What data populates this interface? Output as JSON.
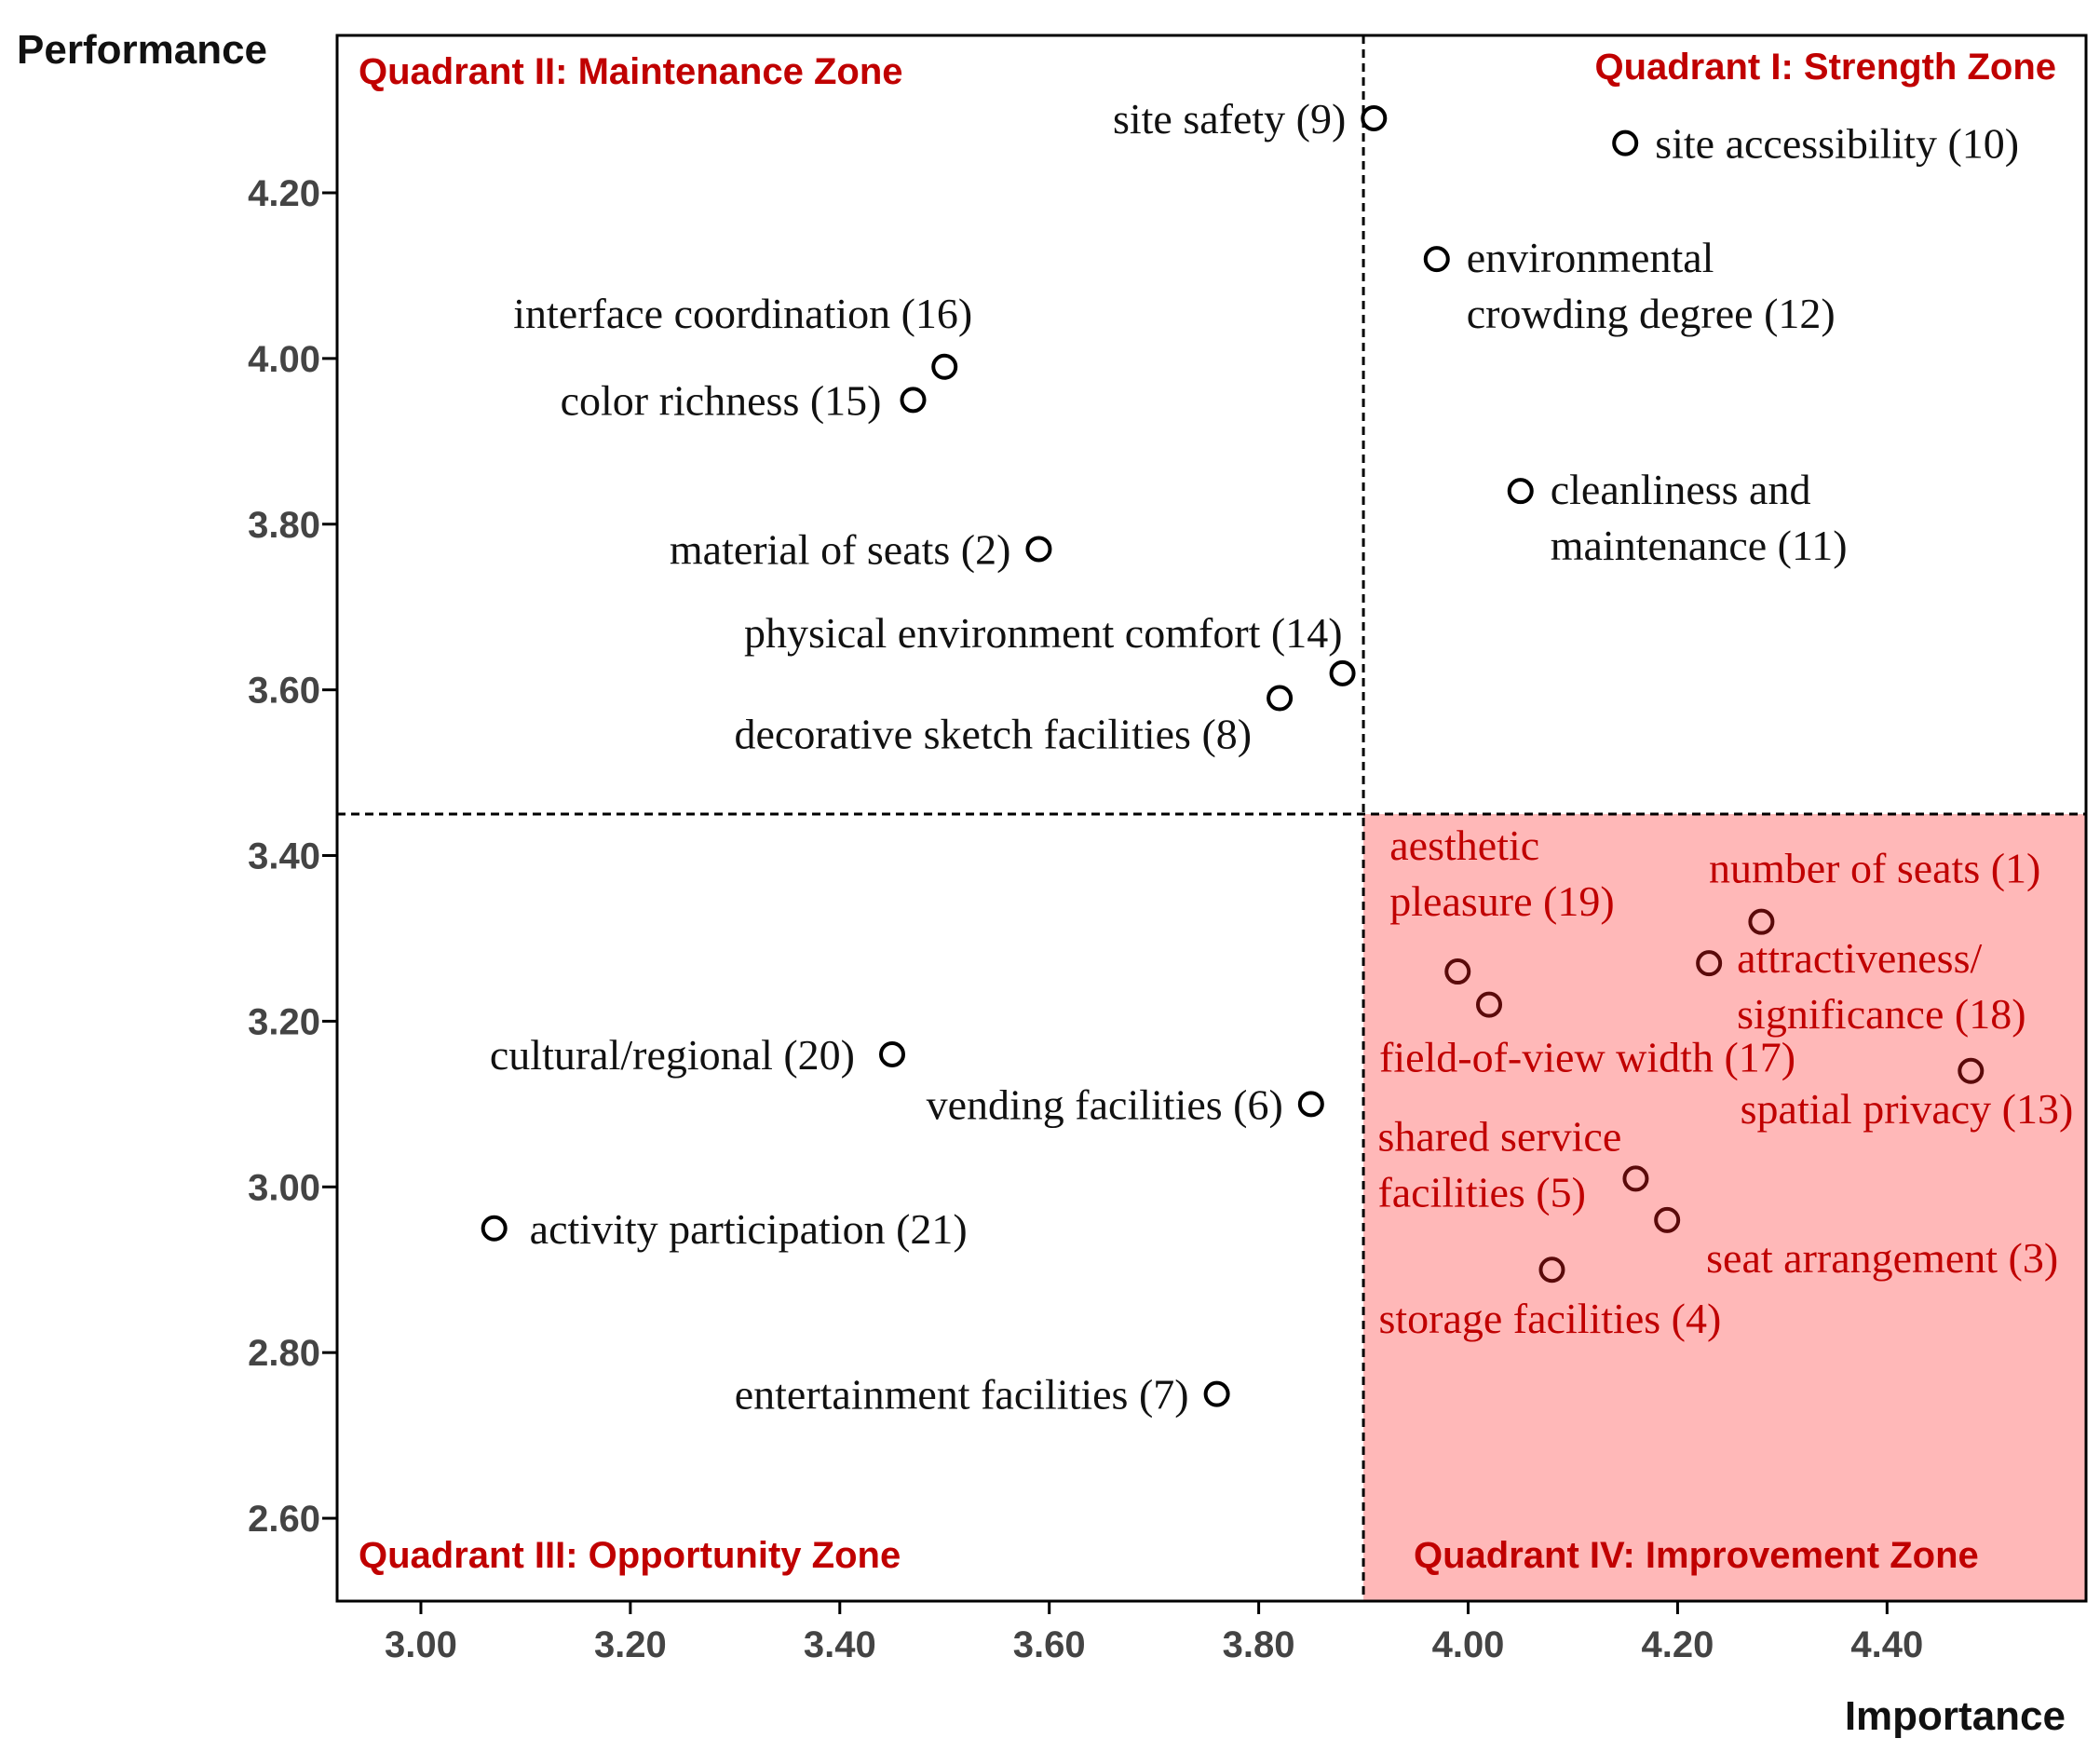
{
  "chart_data": {
    "type": "scatter",
    "title": "",
    "xlabel": "Importance",
    "ylabel": "Performance",
    "xlim": [
      2.92,
      4.59
    ],
    "ylim": [
      2.5,
      4.39
    ],
    "x_ticks": [
      "3.00",
      "3.20",
      "3.40",
      "3.60",
      "3.80",
      "4.00",
      "4.20",
      "4.40"
    ],
    "y_ticks": [
      "2.60",
      "2.80",
      "3.00",
      "3.20",
      "3.40",
      "3.60",
      "3.80",
      "4.00",
      "4.20"
    ],
    "divider": {
      "x": 3.9,
      "y": 3.45
    },
    "quadrants": [
      {
        "id": "I",
        "label": "Quadrant I: Strength Zone"
      },
      {
        "id": "II",
        "label": "Quadrant II: Maintenance Zone"
      },
      {
        "id": "III",
        "label": "Quadrant III: Opportunity Zone"
      },
      {
        "id": "IV",
        "label": "Quadrant IV: Improvement Zone"
      }
    ],
    "highlight_color": "#ffb8b8",
    "label_color": "#c00000",
    "points": [
      {
        "id": 1,
        "lines": [
          "number of seats (1)"
        ],
        "x": 4.28,
        "y": 3.32
      },
      {
        "id": 2,
        "lines": [
          "material of seats (2)"
        ],
        "x": 3.59,
        "y": 3.77
      },
      {
        "id": 3,
        "lines": [
          "seat arrangement (3)"
        ],
        "x": 4.19,
        "y": 2.96
      },
      {
        "id": 4,
        "lines": [
          "storage facilities (4)"
        ],
        "x": 4.08,
        "y": 2.9
      },
      {
        "id": 5,
        "lines": [
          "shared service",
          "facilities (5)"
        ],
        "x": 4.16,
        "y": 3.01
      },
      {
        "id": 6,
        "lines": [
          "vending facilities (6)"
        ],
        "x": 3.85,
        "y": 3.1
      },
      {
        "id": 7,
        "lines": [
          "entertainment facilities (7)"
        ],
        "x": 3.76,
        "y": 2.75
      },
      {
        "id": 8,
        "lines": [
          "decorative sketch facilities (8)"
        ],
        "x": 3.82,
        "y": 3.59
      },
      {
        "id": 9,
        "lines": [
          "site safety (9)"
        ],
        "x": 3.91,
        "y": 4.29
      },
      {
        "id": 10,
        "lines": [
          "site accessibility (10)"
        ],
        "x": 4.15,
        "y": 4.26
      },
      {
        "id": 11,
        "lines": [
          "cleanliness and",
          "maintenance (11)"
        ],
        "x": 4.05,
        "y": 3.84
      },
      {
        "id": 12,
        "lines": [
          "environmental",
          "crowding degree (12)"
        ],
        "x": 3.97,
        "y": 4.12
      },
      {
        "id": 13,
        "lines": [
          "spatial privacy (13)"
        ],
        "x": 4.48,
        "y": 3.14
      },
      {
        "id": 14,
        "lines": [
          "physical environment comfort (14)"
        ],
        "x": 3.88,
        "y": 3.62
      },
      {
        "id": 15,
        "lines": [
          "color richness (15)"
        ],
        "x": 3.47,
        "y": 3.95
      },
      {
        "id": 16,
        "lines": [
          "interface coordination (16)"
        ],
        "x": 3.5,
        "y": 3.99
      },
      {
        "id": 17,
        "lines": [
          "field-of-view width (17)"
        ],
        "x": 4.02,
        "y": 3.22
      },
      {
        "id": 18,
        "lines": [
          "attractiveness/",
          "significance (18)"
        ],
        "x": 4.23,
        "y": 3.27
      },
      {
        "id": 19,
        "lines": [
          "aesthetic",
          "pleasure (19)"
        ],
        "x": 3.99,
        "y": 3.26
      },
      {
        "id": 20,
        "lines": [
          "cultural/regional (20)"
        ],
        "x": 3.45,
        "y": 3.16
      },
      {
        "id": 21,
        "lines": [
          "activity participation (21)"
        ],
        "x": 3.07,
        "y": 2.95
      }
    ]
  }
}
